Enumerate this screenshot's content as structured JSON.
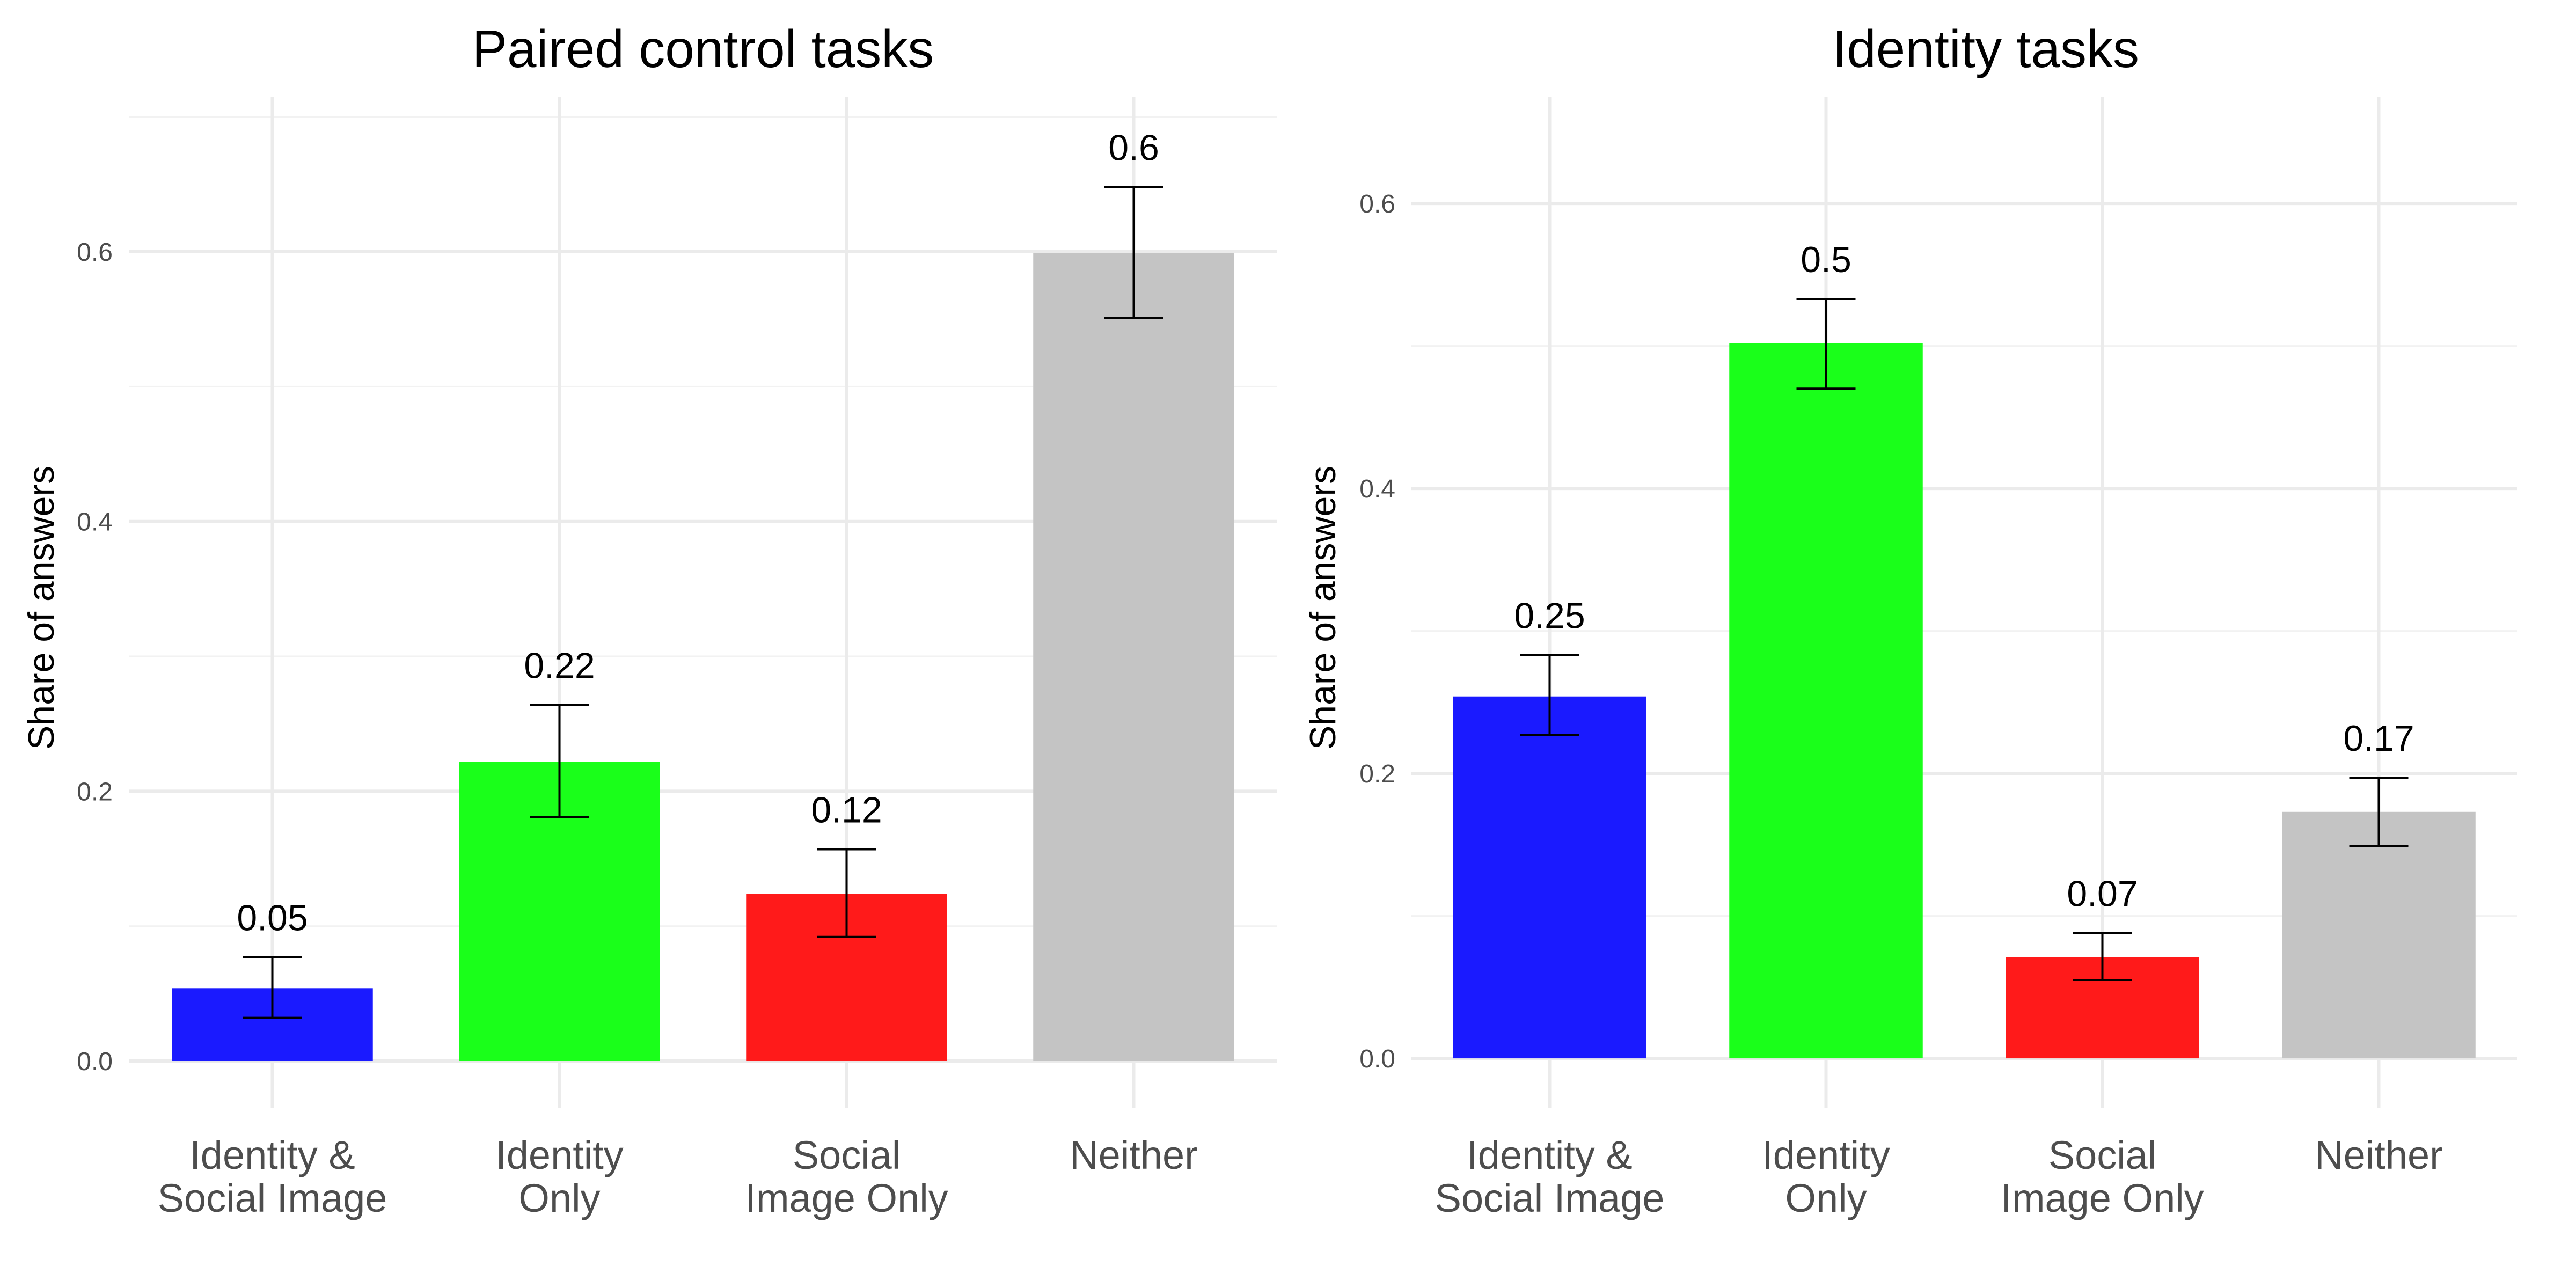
{
  "chart_data": [
    {
      "type": "bar",
      "title": "Paired control tasks",
      "xlabel": "",
      "ylabel": "Share of answers",
      "ylim": [
        -0.035,
        0.715
      ],
      "yticks": [
        0.0,
        0.2,
        0.4,
        0.6
      ],
      "ytick_labels": [
        "0.0",
        "0.2",
        "0.4",
        "0.6"
      ],
      "grid": true,
      "categories": [
        [
          "Identity &",
          "Social Image"
        ],
        [
          "Identity",
          "Only"
        ],
        [
          "Social",
          "Image Only"
        ],
        [
          "Neither"
        ]
      ],
      "values": [
        0.054,
        0.222,
        0.124,
        0.599
      ],
      "error_low": [
        0.032,
        0.181,
        0.092,
        0.551
      ],
      "error_high": [
        0.077,
        0.264,
        0.157,
        0.648
      ],
      "value_labels": [
        "0.05",
        "0.22",
        "0.12",
        "0.6"
      ],
      "colors": [
        "#1a1aff",
        "#1aff1a",
        "#ff1a1a",
        "#c4c4c4"
      ]
    },
    {
      "type": "bar",
      "title": "Identity tasks",
      "xlabel": "",
      "ylabel": "Share of answers",
      "ylim": [
        -0.035,
        0.675
      ],
      "yticks": [
        0.0,
        0.2,
        0.4,
        0.6
      ],
      "ytick_labels": [
        "0.0",
        "0.2",
        "0.4",
        "0.6"
      ],
      "grid": true,
      "categories": [
        [
          "Identity &",
          "Social Image"
        ],
        [
          "Identity",
          "Only"
        ],
        [
          "Social",
          "Image Only"
        ],
        [
          "Neither"
        ]
      ],
      "values": [
        0.254,
        0.502,
        0.071,
        0.173
      ],
      "error_low": [
        0.227,
        0.47,
        0.055,
        0.149
      ],
      "error_high": [
        0.283,
        0.533,
        0.088,
        0.197
      ],
      "value_labels": [
        "0.25",
        "0.5",
        "0.07",
        "0.17"
      ],
      "colors": [
        "#1a1aff",
        "#1aff1a",
        "#ff1a1a",
        "#c4c4c4"
      ]
    }
  ]
}
